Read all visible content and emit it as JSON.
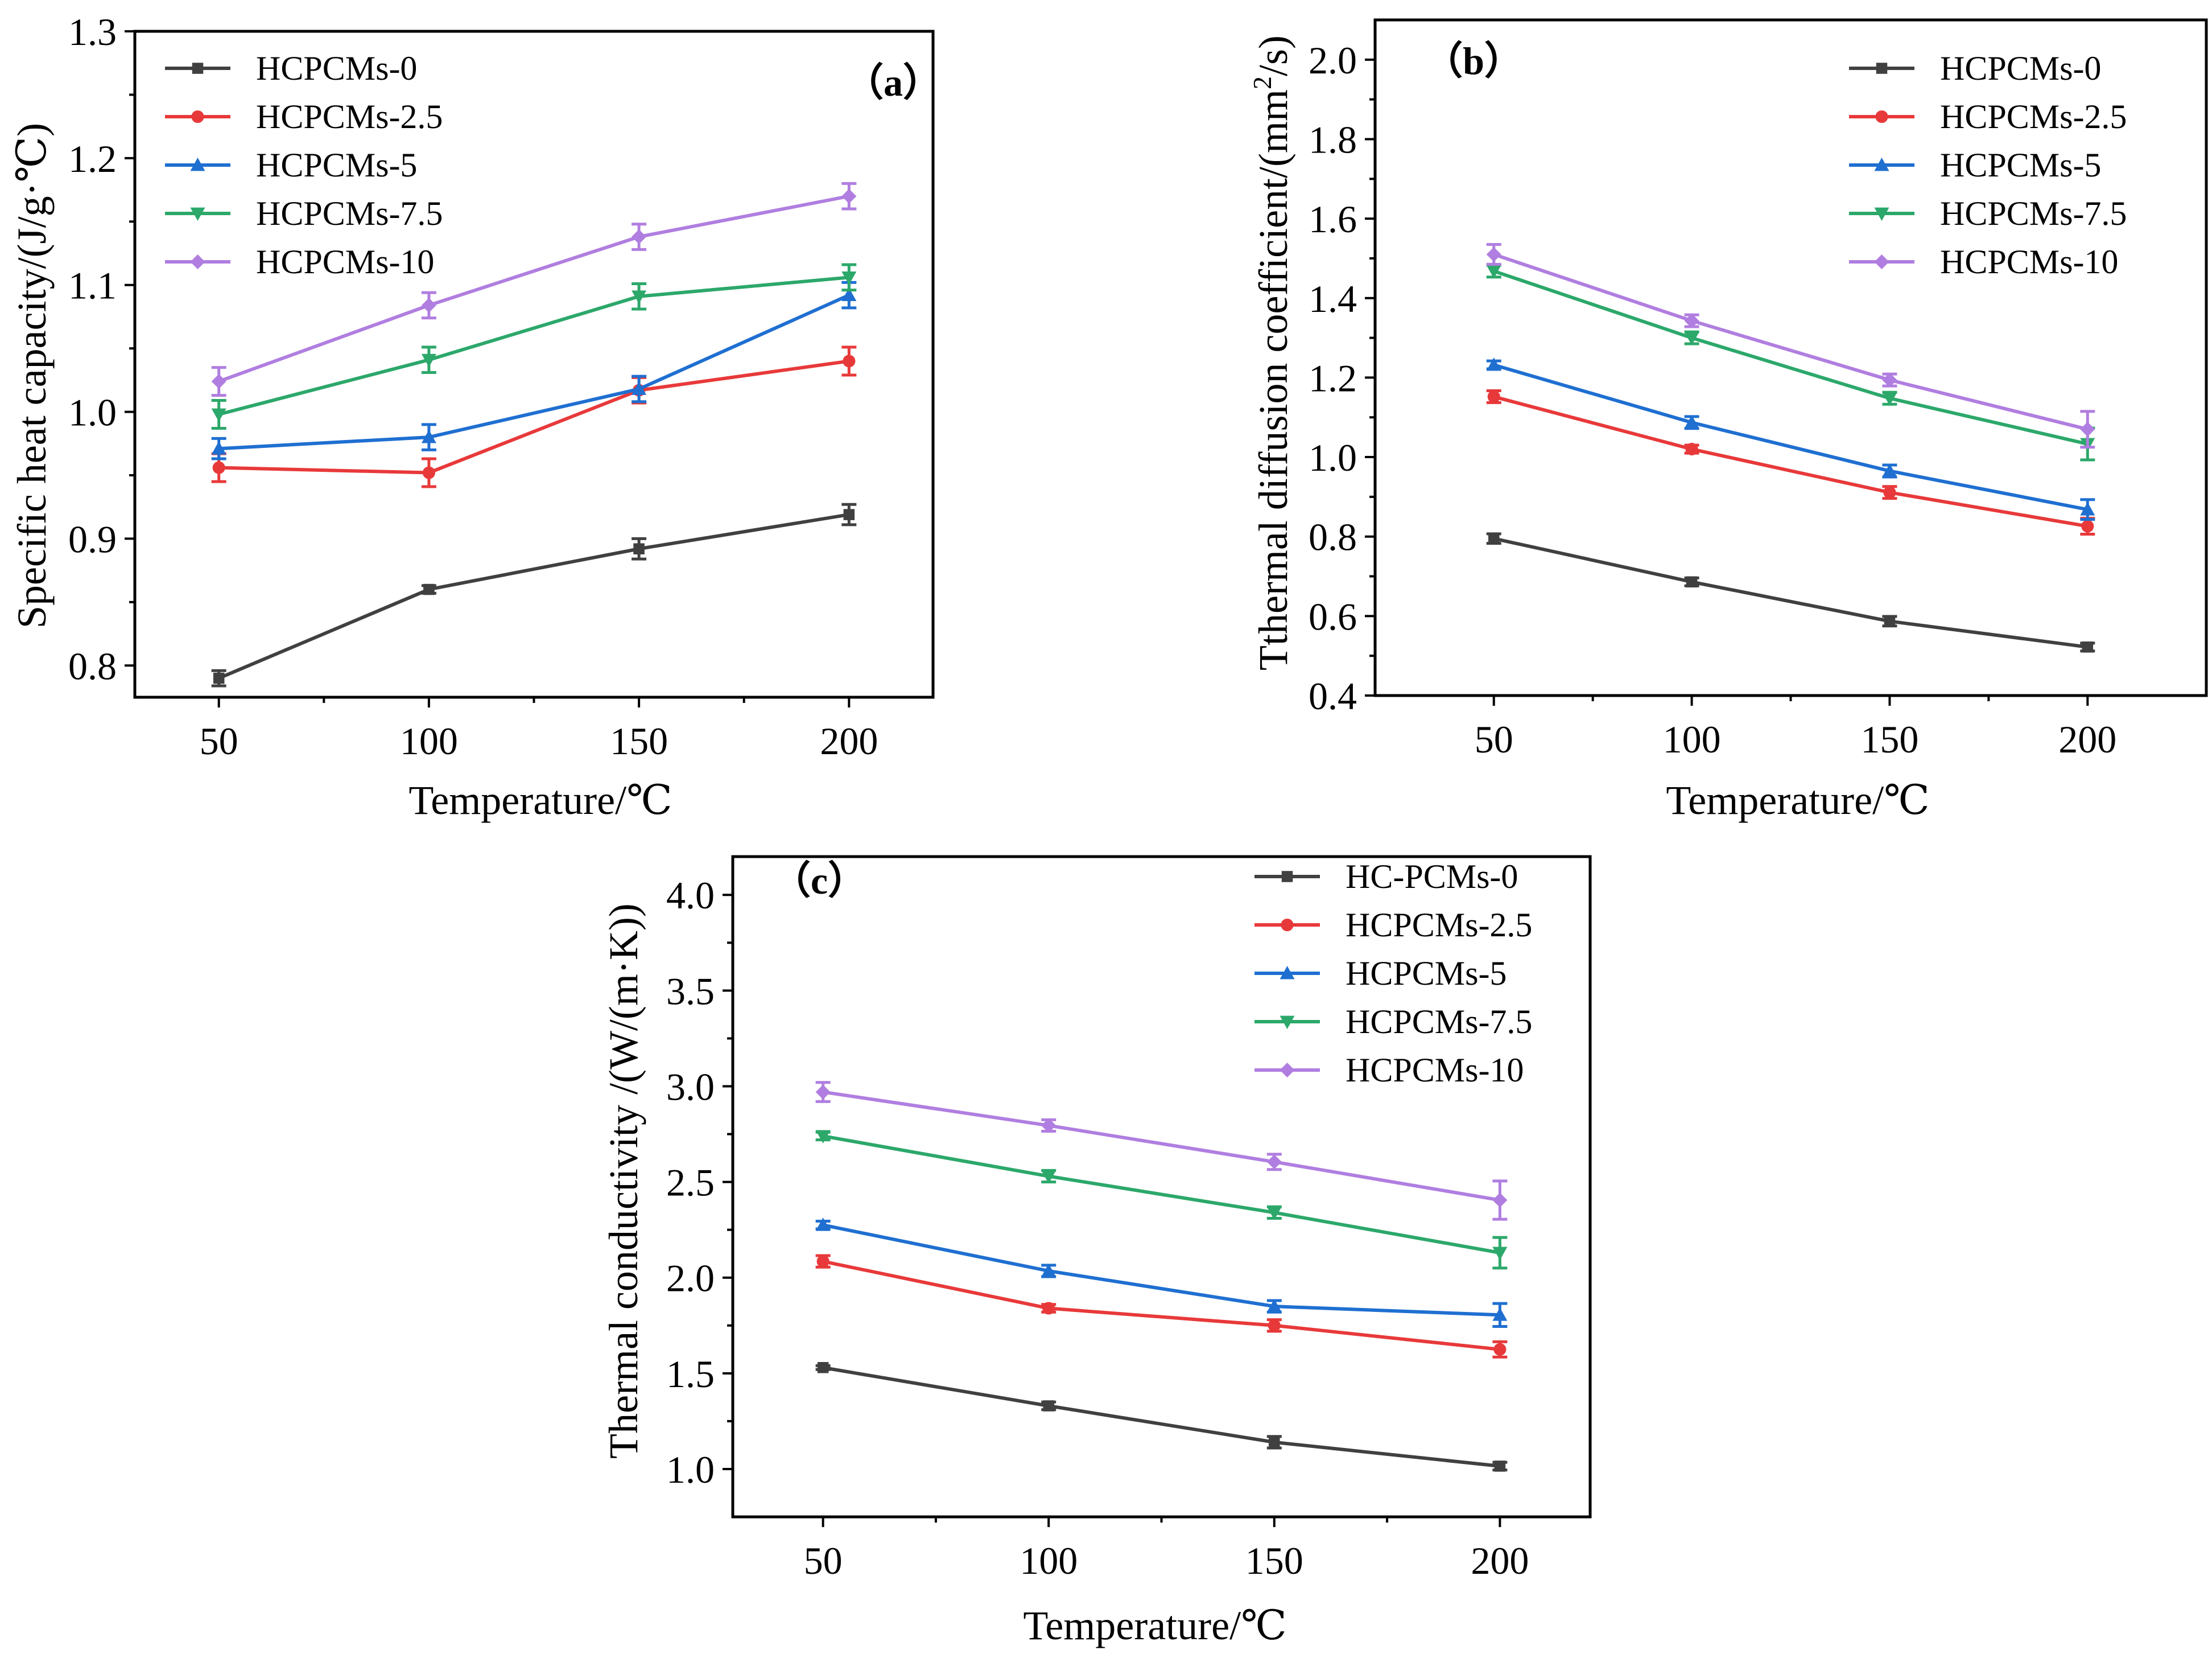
{
  "colors": {
    "HCPCMs-0": "#404040",
    "HCPCMs-2.5": "#e8393a",
    "HCPCMs-5": "#1f6fd1",
    "HCPCMs-7.5": "#2ca86a",
    "HCPCMs-10": "#b07ee0"
  },
  "chart_data": [
    {
      "type": "line",
      "panel_label": "（a）",
      "xlabel": "Temperature/℃",
      "ylabel": "Specific heat capacity/(J/g·℃)",
      "x": [
        50,
        100,
        150,
        200
      ],
      "xticks": [
        "50",
        "100",
        "150",
        "200"
      ],
      "xlim": [
        30,
        220
      ],
      "ylim": [
        0.775,
        1.3
      ],
      "yticks": [
        0.8,
        0.9,
        1.0,
        1.1,
        1.2,
        1.3
      ],
      "ytick_labels": [
        "0.8",
        "0.9",
        "1.0",
        "1.1",
        "1.2",
        "1.3"
      ],
      "legend_position": "top-left",
      "series": [
        {
          "name": "HCPCMs-0",
          "color_key": "HCPCMs-0",
          "marker": "square",
          "values": [
            0.79,
            0.86,
            0.892,
            0.919
          ],
          "errors": [
            0.006,
            0.003,
            0.008,
            0.008
          ]
        },
        {
          "name": "HCPCMs-2.5",
          "color_key": "HCPCMs-2.5",
          "marker": "circle",
          "values": [
            0.956,
            0.952,
            1.017,
            1.04
          ],
          "errors": [
            0.011,
            0.011,
            0.01,
            0.011
          ]
        },
        {
          "name": "HCPCMs-5",
          "color_key": "HCPCMs-5",
          "marker": "triangle-up",
          "values": [
            0.971,
            0.98,
            1.018,
            1.092
          ],
          "errors": [
            0.008,
            0.01,
            0.01,
            0.01
          ]
        },
        {
          "name": "HCPCMs-7.5",
          "color_key": "HCPCMs-7.5",
          "marker": "triangle-down",
          "values": [
            0.998,
            1.041,
            1.091,
            1.106
          ],
          "errors": [
            0.011,
            0.01,
            0.01,
            0.01
          ]
        },
        {
          "name": "HCPCMs-10",
          "color_key": "HCPCMs-10",
          "marker": "diamond",
          "values": [
            1.024,
            1.084,
            1.138,
            1.17
          ],
          "errors": [
            0.011,
            0.01,
            0.01,
            0.01
          ]
        }
      ]
    },
    {
      "type": "line",
      "panel_label": "（b）",
      "xlabel": "Temperature/℃",
      "ylabel": "Tthermal diffusion coefficient/(mm²/s)",
      "x": [
        50,
        100,
        150,
        200
      ],
      "xticks": [
        "50",
        "100",
        "150",
        "200"
      ],
      "xlim": [
        20,
        230
      ],
      "ylim": [
        0.4,
        2.1
      ],
      "yticks": [
        0.4,
        0.6,
        0.8,
        1.0,
        1.2,
        1.4,
        1.6,
        1.8,
        2.0
      ],
      "ytick_labels": [
        "0.4",
        "0.6",
        "0.8",
        "1.0",
        "1.2",
        "1.4",
        "1.6",
        "1.8",
        "2.0"
      ],
      "legend_position": "top-right",
      "series": [
        {
          "name": "HCPCMs-0",
          "color_key": "HCPCMs-0",
          "marker": "square",
          "values": [
            0.795,
            0.686,
            0.587,
            0.522
          ],
          "errors": [
            0.012,
            0.01,
            0.012,
            0.01
          ]
        },
        {
          "name": "HCPCMs-2.5",
          "color_key": "HCPCMs-2.5",
          "marker": "circle",
          "values": [
            1.152,
            1.02,
            0.911,
            0.826
          ],
          "errors": [
            0.015,
            0.01,
            0.015,
            0.02
          ]
        },
        {
          "name": "HCPCMs-5",
          "color_key": "HCPCMs-5",
          "marker": "triangle-up",
          "values": [
            1.232,
            1.087,
            0.965,
            0.868
          ],
          "errors": [
            0.01,
            0.015,
            0.015,
            0.025
          ]
        },
        {
          "name": "HCPCMs-7.5",
          "color_key": "HCPCMs-7.5",
          "marker": "triangle-down",
          "values": [
            1.468,
            1.3,
            1.148,
            1.033
          ],
          "errors": [
            0.015,
            0.015,
            0.015,
            0.04
          ]
        },
        {
          "name": "HCPCMs-10",
          "color_key": "HCPCMs-10",
          "marker": "diamond",
          "values": [
            1.51,
            1.343,
            1.194,
            1.07
          ],
          "errors": [
            0.025,
            0.015,
            0.015,
            0.045
          ]
        }
      ]
    },
    {
      "type": "line",
      "panel_label": "（c）",
      "xlabel": "Temperature/℃",
      "ylabel": "Thermal conductivity /(W/(m·K))",
      "x": [
        50,
        100,
        150,
        200
      ],
      "xticks": [
        "50",
        "100",
        "150",
        "200"
      ],
      "xlim": [
        30,
        220
      ],
      "ylim": [
        0.75,
        4.2
      ],
      "yticks": [
        1.0,
        1.5,
        2.0,
        2.5,
        3.0,
        3.5,
        4.0
      ],
      "ytick_labels": [
        "1.0",
        "1.5",
        "2.0",
        "2.5",
        "3.0",
        "3.5",
        "4.0"
      ],
      "legend_position": "top-right",
      "series": [
        {
          "name": "HC-PCMs-0",
          "color_key": "HCPCMs-0",
          "marker": "square",
          "values": [
            1.53,
            1.33,
            1.14,
            1.015
          ],
          "errors": [
            0.01,
            0.02,
            0.03,
            0.02
          ]
        },
        {
          "name": "HCPCMs-2.5",
          "color_key": "HCPCMs-2.5",
          "marker": "circle",
          "values": [
            2.085,
            1.84,
            1.75,
            1.625
          ],
          "errors": [
            0.03,
            0.02,
            0.03,
            0.04
          ]
        },
        {
          "name": "HCPCMs-5",
          "color_key": "HCPCMs-5",
          "marker": "triangle-up",
          "values": [
            2.275,
            2.035,
            1.85,
            1.805
          ],
          "errors": [
            0.02,
            0.03,
            0.03,
            0.06
          ]
        },
        {
          "name": "HCPCMs-7.5",
          "color_key": "HCPCMs-7.5",
          "marker": "triangle-down",
          "values": [
            2.74,
            2.53,
            2.34,
            2.13
          ],
          "errors": [
            0.02,
            0.03,
            0.03,
            0.08
          ]
        },
        {
          "name": "HCPCMs-10",
          "color_key": "HCPCMs-10",
          "marker": "diamond",
          "values": [
            2.97,
            2.795,
            2.605,
            2.405
          ],
          "errors": [
            0.05,
            0.03,
            0.04,
            0.1
          ]
        }
      ]
    }
  ]
}
